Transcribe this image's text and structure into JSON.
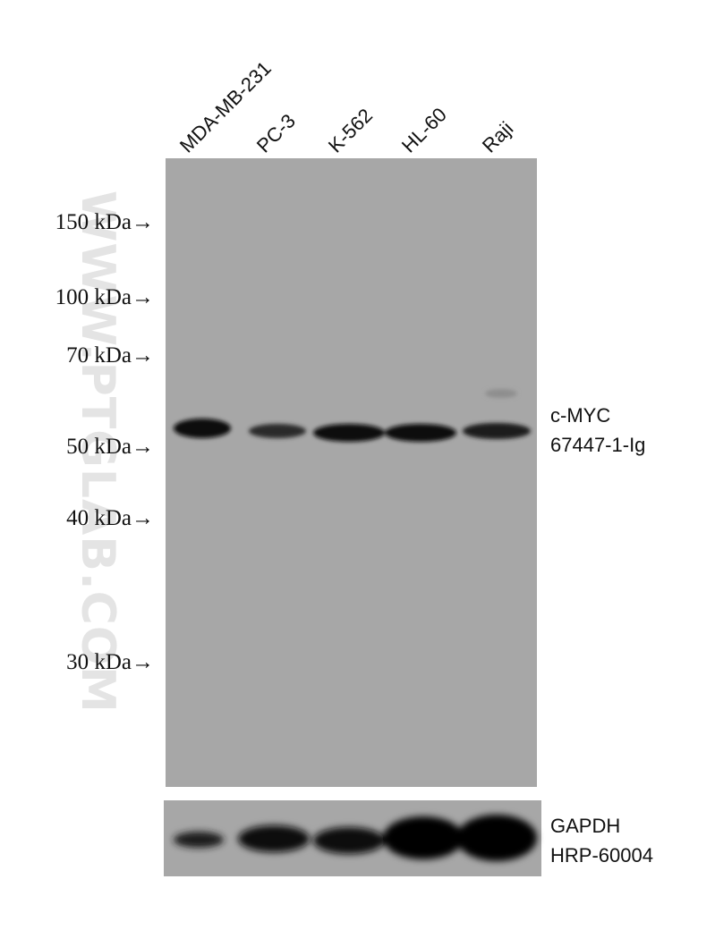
{
  "lanes": [
    "MDA-MB-231",
    "PC-3",
    "K-562",
    "HL-60",
    "Raji"
  ],
  "markers": [
    "150 kDa→",
    "100 kDa→",
    "70 kDa→",
    "50 kDa→",
    "40 kDa→",
    "30 kDa→"
  ],
  "target": {
    "name": "c-MYC",
    "catalog": "67447-1-Ig"
  },
  "loading_control": {
    "name": "GAPDH",
    "catalog": "HRP-60004"
  },
  "watermark": "WWW.PTGLAB.COM"
}
